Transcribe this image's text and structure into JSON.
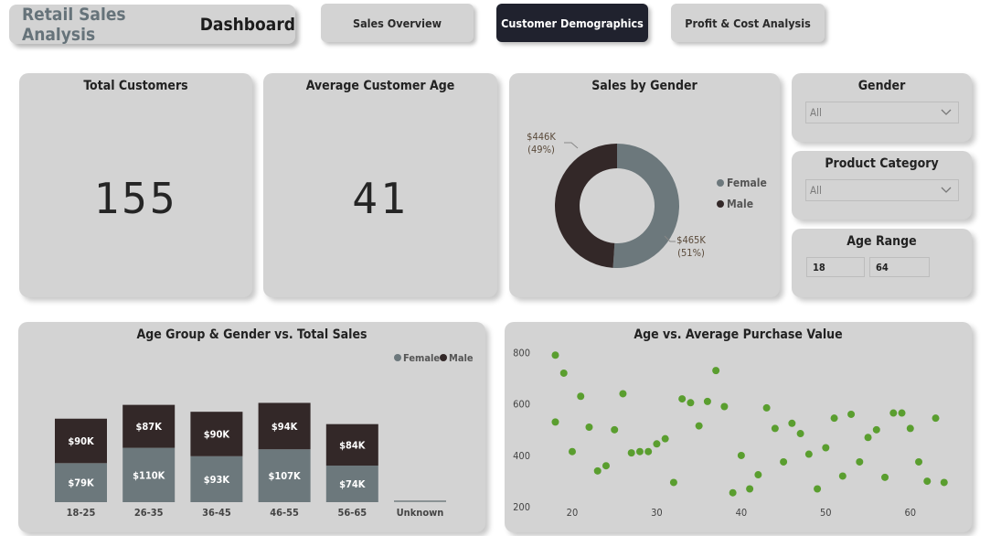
{
  "header": {
    "title_part1": "Retail Sales Analysis",
    "title_part2": "Dashboard",
    "tabs": [
      {
        "label": "Sales Overview",
        "active": false
      },
      {
        "label": "Customer Demographics",
        "active": true
      },
      {
        "label": "Profit & Cost Analysis",
        "active": false
      }
    ]
  },
  "kpis": {
    "total_customers": {
      "title": "Total Customers",
      "value": "155"
    },
    "average_age": {
      "title": "Average Customer Age",
      "value": "41"
    }
  },
  "filters": {
    "gender": {
      "title": "Gender",
      "value": "All"
    },
    "product_category": {
      "title": "Product Category",
      "value": "All"
    },
    "age_range": {
      "title": "Age Range",
      "min": "18",
      "max": "64"
    }
  },
  "colors": {
    "female": "#6c787c",
    "male": "#332828",
    "scatter": "#5a9e2f",
    "card": "#d3d3d3"
  },
  "chart_data": [
    {
      "type": "pie",
      "title": "Sales by Gender",
      "legend": [
        "Female",
        "Male"
      ],
      "legend_position": "right",
      "slices": [
        {
          "name": "Female",
          "value": 465,
          "label": "$465K",
          "pct": "(51%)"
        },
        {
          "name": "Male",
          "value": 446,
          "label": "$446K",
          "pct": "(49%)"
        }
      ]
    },
    {
      "type": "bar",
      "stacked": true,
      "title": "Age Group & Gender vs. Total Sales",
      "legend": [
        "Female",
        "Male"
      ],
      "legend_position": "top-right",
      "categories": [
        "18-25",
        "26-35",
        "36-45",
        "46-55",
        "56-65",
        "Unknown"
      ],
      "series": [
        {
          "name": "Female",
          "values": [
            79,
            110,
            93,
            107,
            74,
            1
          ],
          "labels": [
            "$79K",
            "$110K",
            "$93K",
            "$107K",
            "$74K",
            ""
          ]
        },
        {
          "name": "Male",
          "values": [
            90,
            87,
            90,
            94,
            84,
            0
          ],
          "labels": [
            "$90K",
            "$87K",
            "$90K",
            "$94K",
            "$84K",
            ""
          ]
        }
      ]
    },
    {
      "type": "scatter",
      "title": "Age vs. Average Purchase Value",
      "xlim": [
        16,
        65
      ],
      "ylim": [
        190,
        830
      ],
      "xticks": [
        20,
        30,
        40,
        50,
        60
      ],
      "yticks": [
        200,
        400,
        600,
        800
      ],
      "grid": false,
      "points": [
        [
          18,
          790
        ],
        [
          19,
          720
        ],
        [
          18,
          530
        ],
        [
          20,
          415
        ],
        [
          21,
          630
        ],
        [
          22,
          510
        ],
        [
          23,
          340
        ],
        [
          24,
          360
        ],
        [
          25,
          500
        ],
        [
          26,
          640
        ],
        [
          27,
          410
        ],
        [
          28,
          415
        ],
        [
          29,
          415
        ],
        [
          30,
          445
        ],
        [
          31,
          465
        ],
        [
          32,
          295
        ],
        [
          33,
          620
        ],
        [
          34,
          605
        ],
        [
          35,
          515
        ],
        [
          36,
          610
        ],
        [
          37,
          730
        ],
        [
          38,
          590
        ],
        [
          39,
          255
        ],
        [
          40,
          400
        ],
        [
          41,
          270
        ],
        [
          42,
          325
        ],
        [
          43,
          585
        ],
        [
          44,
          505
        ],
        [
          45,
          375
        ],
        [
          46,
          525
        ],
        [
          47,
          485
        ],
        [
          48,
          405
        ],
        [
          49,
          270
        ],
        [
          50,
          430
        ],
        [
          51,
          545
        ],
        [
          52,
          320
        ],
        [
          53,
          560
        ],
        [
          54,
          375
        ],
        [
          55,
          470
        ],
        [
          56,
          500
        ],
        [
          57,
          315
        ],
        [
          58,
          565
        ],
        [
          59,
          565
        ],
        [
          60,
          505
        ],
        [
          61,
          375
        ],
        [
          62,
          300
        ],
        [
          63,
          545
        ],
        [
          64,
          295
        ]
      ]
    }
  ]
}
